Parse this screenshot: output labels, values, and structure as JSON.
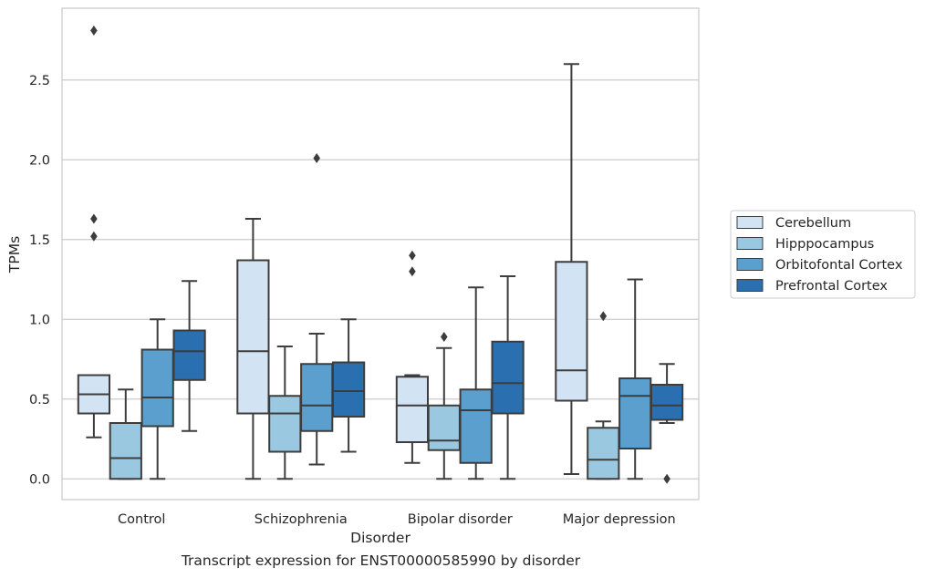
{
  "caption": "Transcript expression for ENST00000585990 by disorder",
  "chart_data": {
    "type": "box",
    "xlabel": "Disorder",
    "ylabel": "TPMs",
    "ylim": [
      -0.13,
      2.95
    ],
    "yticks": [
      0.0,
      0.5,
      1.0,
      1.5,
      2.0,
      2.5
    ],
    "ytick_labels": [
      "0.0",
      "0.5",
      "1.0",
      "1.5",
      "2.0",
      "2.5"
    ],
    "grid": "horizontal",
    "legend_position": "right",
    "categories": [
      "Control",
      "Schizophrenia",
      "Bipolar disorder",
      "Major depression"
    ],
    "series": [
      {
        "name": "Cerebellum",
        "color": "#d2e3f3",
        "boxes": [
          {
            "whislo": 0.26,
            "q1": 0.41,
            "med": 0.53,
            "q3": 0.65,
            "whishi": 0.65,
            "fliers": [
              1.52,
              1.63,
              2.81
            ]
          },
          {
            "whislo": 0.0,
            "q1": 0.41,
            "med": 0.8,
            "q3": 1.37,
            "whishi": 1.63,
            "fliers": []
          },
          {
            "whislo": 0.1,
            "q1": 0.23,
            "med": 0.46,
            "q3": 0.64,
            "whishi": 0.65,
            "fliers": [
              1.3,
              1.4
            ]
          },
          {
            "whislo": 0.03,
            "q1": 0.49,
            "med": 0.68,
            "q3": 1.36,
            "whishi": 2.6,
            "fliers": []
          }
        ]
      },
      {
        "name": "Hipppocampus",
        "color": "#9ac8e0",
        "boxes": [
          {
            "whislo": 0.0,
            "q1": 0.0,
            "med": 0.13,
            "q3": 0.35,
            "whishi": 0.56,
            "fliers": []
          },
          {
            "whislo": 0.0,
            "q1": 0.17,
            "med": 0.41,
            "q3": 0.52,
            "whishi": 0.83,
            "fliers": []
          },
          {
            "whislo": 0.0,
            "q1": 0.18,
            "med": 0.24,
            "q3": 0.46,
            "whishi": 0.82,
            "fliers": [
              0.89
            ]
          },
          {
            "whislo": 0.0,
            "q1": 0.0,
            "med": 0.12,
            "q3": 0.32,
            "whishi": 0.36,
            "fliers": [
              1.02
            ]
          }
        ]
      },
      {
        "name": "Orbitofontal Cortex",
        "color": "#5a9fcd",
        "boxes": [
          {
            "whislo": 0.0,
            "q1": 0.33,
            "med": 0.51,
            "q3": 0.81,
            "whishi": 1.0,
            "fliers": []
          },
          {
            "whislo": 0.09,
            "q1": 0.3,
            "med": 0.46,
            "q3": 0.72,
            "whishi": 0.91,
            "fliers": [
              2.01
            ]
          },
          {
            "whislo": 0.0,
            "q1": 0.1,
            "med": 0.43,
            "q3": 0.56,
            "whishi": 1.2,
            "fliers": []
          },
          {
            "whislo": 0.0,
            "q1": 0.19,
            "med": 0.52,
            "q3": 0.63,
            "whishi": 1.25,
            "fliers": []
          }
        ]
      },
      {
        "name": "Prefrontal Cortex",
        "color": "#2a6fb0",
        "boxes": [
          {
            "whislo": 0.3,
            "q1": 0.62,
            "med": 0.8,
            "q3": 0.93,
            "whishi": 1.24,
            "fliers": []
          },
          {
            "whislo": 0.17,
            "q1": 0.39,
            "med": 0.55,
            "q3": 0.73,
            "whishi": 1.0,
            "fliers": []
          },
          {
            "whislo": 0.0,
            "q1": 0.41,
            "med": 0.6,
            "q3": 0.86,
            "whishi": 1.27,
            "fliers": []
          },
          {
            "whislo": 0.35,
            "q1": 0.37,
            "med": 0.46,
            "q3": 0.59,
            "whishi": 0.72,
            "fliers": [
              0.0
            ]
          }
        ]
      }
    ]
  }
}
